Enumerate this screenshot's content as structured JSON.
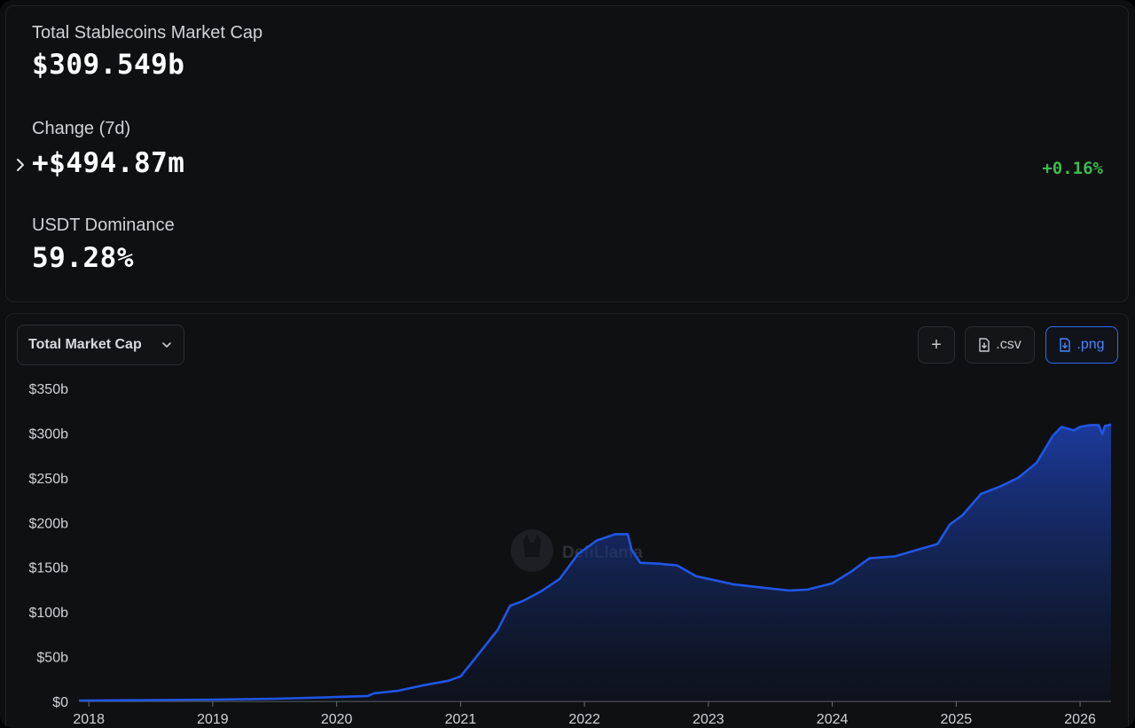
{
  "stats": {
    "market_cap_label": "Total Stablecoins Market Cap",
    "market_cap_value": "$309.549b",
    "change_label": "Change (7d)",
    "change_value": "+$494.87m",
    "change_pct": "+0.16%",
    "dominance_label": "USDT Dominance",
    "dominance_value": "59.28%"
  },
  "toolbar": {
    "chart_select": "Total Market Cap",
    "add_label": "+",
    "csv_label": ".csv",
    "png_label": ".png"
  },
  "watermark": "DefiLlama",
  "colors": {
    "line": "#1f56e6",
    "positive": "#3fb950",
    "accent": "#2f6bf0"
  },
  "chart_data": {
    "type": "area",
    "y_ticks": [
      "$0",
      "$50b",
      "$100b",
      "$150b",
      "$200b",
      "$250b",
      "$300b",
      "$350b"
    ],
    "x_ticks": [
      "2018",
      "2019",
      "2020",
      "2021",
      "2022",
      "2023",
      "2024",
      "2025",
      "2026"
    ],
    "ylim": [
      0,
      350
    ],
    "y_unit": "billions USD",
    "grid": false,
    "series": [
      {
        "points": [
          [
            2017.92,
            1
          ],
          [
            2018.5,
            1.5
          ],
          [
            2019.0,
            2
          ],
          [
            2019.5,
            3
          ],
          [
            2019.9,
            4.5
          ],
          [
            2020.0,
            5
          ],
          [
            2020.25,
            6
          ],
          [
            2020.3,
            9
          ],
          [
            2020.5,
            12
          ],
          [
            2020.7,
            18
          ],
          [
            2020.9,
            23
          ],
          [
            2021.0,
            28
          ],
          [
            2021.1,
            45
          ],
          [
            2021.3,
            80
          ],
          [
            2021.4,
            107
          ],
          [
            2021.5,
            112
          ],
          [
            2021.65,
            123
          ],
          [
            2021.8,
            137
          ],
          [
            2021.95,
            165
          ],
          [
            2022.1,
            180
          ],
          [
            2022.25,
            187
          ],
          [
            2022.35,
            187
          ],
          [
            2022.38,
            170
          ],
          [
            2022.45,
            155
          ],
          [
            2022.6,
            154
          ],
          [
            2022.75,
            152
          ],
          [
            2022.9,
            140
          ],
          [
            2023.0,
            137
          ],
          [
            2023.2,
            131
          ],
          [
            2023.45,
            127
          ],
          [
            2023.65,
            124
          ],
          [
            2023.8,
            125
          ],
          [
            2024.0,
            132
          ],
          [
            2024.15,
            145
          ],
          [
            2024.3,
            160
          ],
          [
            2024.5,
            162
          ],
          [
            2024.7,
            170
          ],
          [
            2024.85,
            176
          ],
          [
            2024.95,
            198
          ],
          [
            2025.05,
            208
          ],
          [
            2025.2,
            232
          ],
          [
            2025.35,
            240
          ],
          [
            2025.5,
            250
          ],
          [
            2025.65,
            267
          ],
          [
            2025.78,
            297
          ],
          [
            2025.85,
            307
          ],
          [
            2025.95,
            303
          ],
          [
            2026.0,
            307
          ],
          [
            2026.08,
            309
          ],
          [
            2026.15,
            309
          ],
          [
            2026.18,
            299
          ],
          [
            2026.2,
            308
          ],
          [
            2026.25,
            309.5
          ]
        ]
      }
    ]
  }
}
